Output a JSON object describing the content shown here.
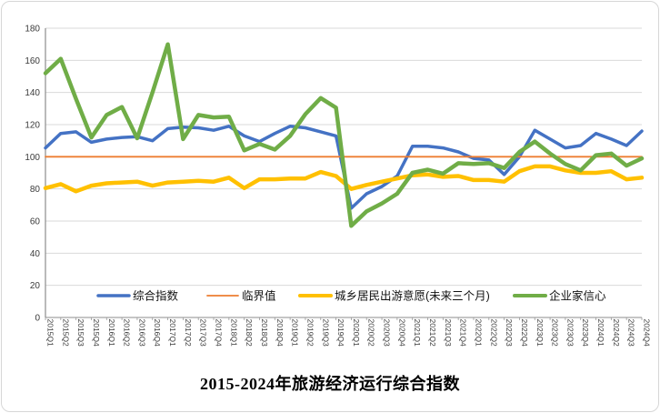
{
  "chart_data": {
    "type": "line",
    "title": "2015-2024年旅游经济运行综合指数",
    "grid": true,
    "legend_position": "bottom-inside",
    "x_axis_label_rotation": 90,
    "y_axis": {
      "min": 0,
      "max": 180,
      "step": 20
    },
    "categories": [
      "2015Q1",
      "2015Q2",
      "2015Q3",
      "2015Q4",
      "2016Q1",
      "2016Q2",
      "2016Q3",
      "2016Q4",
      "2017Q1",
      "2017Q2",
      "2017Q3",
      "2017Q4",
      "2018Q1",
      "2018Q2",
      "2018Q3",
      "2018Q4",
      "2019Q1",
      "2019Q2",
      "2019Q3",
      "2019Q4",
      "2020Q1",
      "2020Q2",
      "2020Q3",
      "2020Q4",
      "2021Q1",
      "2021Q2",
      "2021Q3",
      "2021Q4",
      "2022Q1",
      "2022Q2",
      "2022Q3",
      "2022Q4",
      "2023Q1",
      "2023Q2",
      "2023Q3",
      "2023Q4",
      "2024Q1",
      "2024Q2",
      "2024Q3",
      "2024Q4"
    ],
    "series": [
      {
        "key": "composite-index",
        "name": "综合指数",
        "color": "#4472C4",
        "width": 3.5,
        "values": [
          105.5,
          114.5,
          115.5,
          109,
          111,
          112,
          112.5,
          110,
          117.5,
          118.5,
          118,
          116.5,
          119,
          113,
          109.5,
          114.5,
          119,
          118,
          115.5,
          113,
          68,
          77,
          81.5,
          88,
          106.5,
          106.5,
          105.5,
          103,
          99,
          98,
          89,
          100,
          116.5,
          111,
          105.5,
          107,
          114.5,
          111,
          107,
          116
        ]
      },
      {
        "key": "threshold",
        "name": "临界值",
        "color": "#ED7D31",
        "width": 1.8,
        "values": [
          100,
          100,
          100,
          100,
          100,
          100,
          100,
          100,
          100,
          100,
          100,
          100,
          100,
          100,
          100,
          100,
          100,
          100,
          100,
          100,
          100,
          100,
          100,
          100,
          100,
          100,
          100,
          100,
          100,
          100,
          100,
          100,
          100,
          100,
          100,
          100,
          100,
          100,
          100,
          100
        ]
      },
      {
        "key": "urban-rural-travel-intention",
        "name": "城乡居民出游意愿(未来三个月)",
        "color": "#FFC000",
        "width": 4.5,
        "values": [
          80.5,
          83,
          78.5,
          82,
          83.5,
          84,
          84.5,
          82,
          84,
          84.5,
          85,
          84.5,
          87,
          80.5,
          86,
          86,
          86.5,
          86.5,
          90.5,
          88,
          80,
          82.5,
          84.5,
          86.5,
          88.5,
          89,
          87.5,
          88,
          85.5,
          85.5,
          84.5,
          91,
          94,
          94,
          91.5,
          90,
          90,
          91,
          86,
          87
        ]
      },
      {
        "key": "entrepreneur-confidence",
        "name": "企业家信心",
        "color": "#70AD47",
        "width": 4.5,
        "values": [
          152,
          161,
          136,
          112,
          126,
          131,
          111.5,
          140,
          170,
          111,
          126,
          124.5,
          125,
          104,
          108,
          104.5,
          113,
          126.5,
          136.5,
          130.5,
          57,
          66,
          71,
          77,
          90,
          92,
          89.5,
          96,
          95.5,
          96,
          93,
          103,
          109.5,
          102,
          95.5,
          91.5,
          101,
          102,
          94.5,
          99
        ]
      }
    ],
    "colors": {
      "gridline": "#D9D9D9",
      "axis": "#8C8C8C",
      "background": "#FFFFFF",
      "border": "#D7D7D7"
    }
  }
}
